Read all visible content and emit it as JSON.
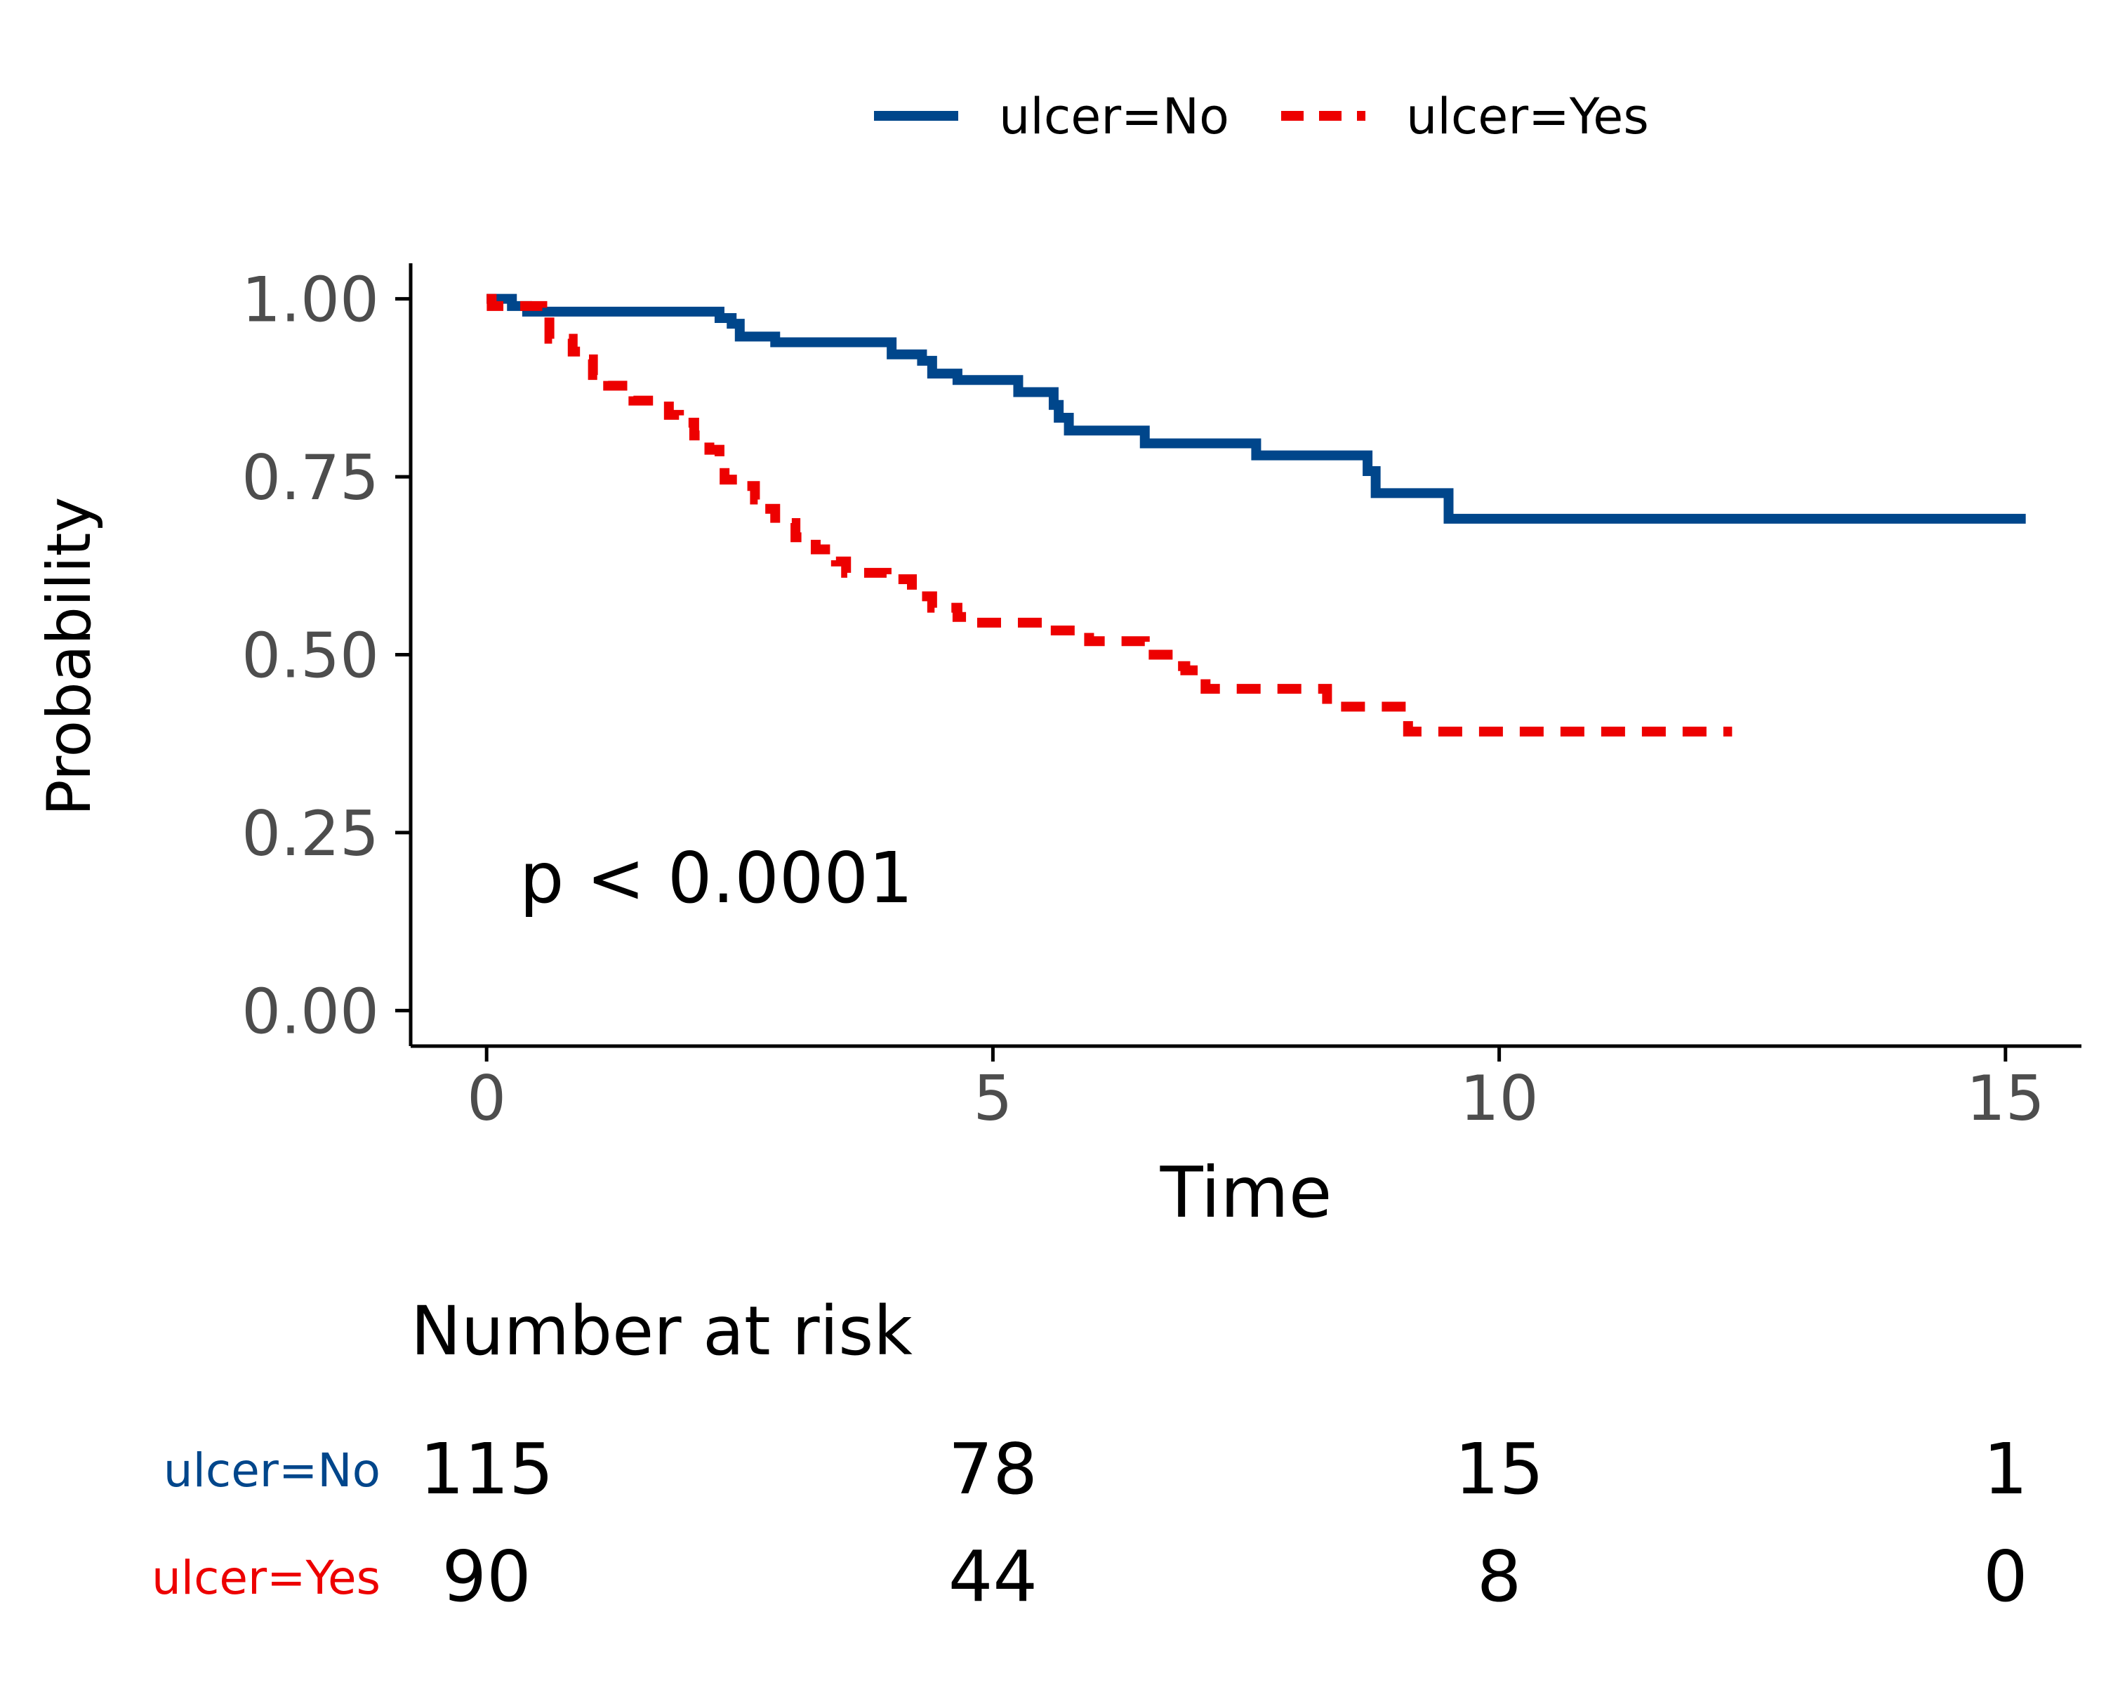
{
  "chart_data": {
    "type": "line",
    "subtype": "kaplan-meier-step",
    "xlabel": "Time",
    "ylabel": "Probability",
    "xlim": [
      -0.75,
      15.75
    ],
    "ylim": [
      -0.05,
      1.05
    ],
    "x_ticks": [
      0,
      5,
      10,
      15
    ],
    "x_tick_labels": [
      "0",
      "5",
      "10",
      "15"
    ],
    "y_ticks": [
      0,
      0.25,
      0.5,
      0.75,
      1.0
    ],
    "y_tick_labels": [
      "0.00",
      "0.25",
      "0.50",
      "0.75",
      "1.00"
    ],
    "grid": false,
    "legend_position": "top",
    "annotation": "p < 0.0001",
    "series": [
      {
        "name": "ulcer=No",
        "color": "#00468b",
        "dash": "solid",
        "steps": [
          [
            0,
            1.0
          ],
          [
            0.25,
            0.99
          ],
          [
            0.4,
            0.982
          ],
          [
            2.3,
            0.973
          ],
          [
            2.42,
            0.965
          ],
          [
            2.5,
            0.947
          ],
          [
            2.85,
            0.939
          ],
          [
            4.0,
            0.922
          ],
          [
            4.3,
            0.913
          ],
          [
            4.4,
            0.895
          ],
          [
            4.65,
            0.886
          ],
          [
            5.25,
            0.869
          ],
          [
            5.6,
            0.851
          ],
          [
            5.65,
            0.833
          ],
          [
            5.75,
            0.815
          ],
          [
            6.5,
            0.797
          ],
          [
            7.6,
            0.78
          ],
          [
            8.7,
            0.758
          ],
          [
            8.78,
            0.727
          ],
          [
            9.5,
            0.691
          ],
          [
            15.2,
            0.691
          ]
        ]
      },
      {
        "name": "ulcer=Yes",
        "color": "#ed0000",
        "dash": "dashed",
        "steps": [
          [
            0,
            1.0
          ],
          [
            0.05,
            0.99
          ],
          [
            0.3,
            0.99
          ],
          [
            0.55,
            0.975
          ],
          [
            0.62,
            0.944
          ],
          [
            0.85,
            0.926
          ],
          [
            0.95,
            0.915
          ],
          [
            1.05,
            0.893
          ],
          [
            1.2,
            0.878
          ],
          [
            1.45,
            0.857
          ],
          [
            1.8,
            0.837
          ],
          [
            1.9,
            0.826
          ],
          [
            2.05,
            0.808
          ],
          [
            2.2,
            0.788
          ],
          [
            2.3,
            0.771
          ],
          [
            2.35,
            0.746
          ],
          [
            2.5,
            0.737
          ],
          [
            2.65,
            0.718
          ],
          [
            2.75,
            0.705
          ],
          [
            2.85,
            0.685
          ],
          [
            3.05,
            0.665
          ],
          [
            3.25,
            0.648
          ],
          [
            3.45,
            0.631
          ],
          [
            3.55,
            0.615
          ],
          [
            3.95,
            0.606
          ],
          [
            4.2,
            0.582
          ],
          [
            4.4,
            0.566
          ],
          [
            4.65,
            0.553
          ],
          [
            4.75,
            0.545
          ],
          [
            5.55,
            0.534
          ],
          [
            5.95,
            0.519
          ],
          [
            6.5,
            0.5
          ],
          [
            6.8,
            0.484
          ],
          [
            6.9,
            0.478
          ],
          [
            7.1,
            0.452
          ],
          [
            8.3,
            0.427
          ],
          [
            9.1,
            0.392
          ],
          [
            12.3,
            0.392
          ]
        ]
      }
    ]
  },
  "risk_table": {
    "title": "Number at risk",
    "times": [
      0,
      5,
      10,
      15
    ],
    "rows": [
      {
        "label": "ulcer=No",
        "color": "#00468b",
        "values": [
          "115",
          "78",
          "15",
          "1"
        ]
      },
      {
        "label": "ulcer=Yes",
        "color": "#ed0000",
        "values": [
          "90",
          "44",
          "8",
          "0"
        ]
      }
    ]
  }
}
